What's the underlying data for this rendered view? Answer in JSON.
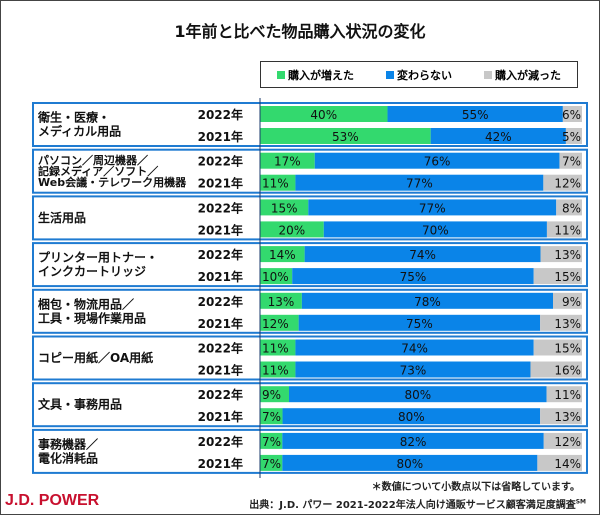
{
  "chart_data": {
    "type": "bar",
    "orientation": "horizontal",
    "stacked": true,
    "title": "1年前と比べた物品購入状況の変化",
    "xlim": [
      0,
      100
    ],
    "legend_placement": "top-right",
    "series_names": [
      "購入が増えた",
      "変わらない",
      "購入が減った"
    ],
    "colors": [
      "#33d96e",
      "#0a84e8",
      "#c8c8c8"
    ],
    "groups": [
      {
        "label": "衛生・医療・\nメディカル用品",
        "rows": [
          {
            "year": "2022年",
            "values": [
              40,
              55,
              6
            ]
          },
          {
            "year": "2021年",
            "values": [
              53,
              42,
              5
            ]
          }
        ]
      },
      {
        "label": "パソコン／周辺機器／\n記録メディア／ソフト／\nWeb会議・テレワーク用機器",
        "rows": [
          {
            "year": "2022年",
            "values": [
              17,
              76,
              7
            ]
          },
          {
            "year": "2021年",
            "values": [
              11,
              77,
              12
            ]
          }
        ]
      },
      {
        "label": "生活用品",
        "rows": [
          {
            "year": "2022年",
            "values": [
              15,
              77,
              8
            ]
          },
          {
            "year": "2021年",
            "values": [
              20,
              70,
              11
            ]
          }
        ]
      },
      {
        "label": "プリンター用トナー・\nインクカートリッジ",
        "rows": [
          {
            "year": "2022年",
            "values": [
              14,
              74,
              13
            ]
          },
          {
            "year": "2021年",
            "values": [
              10,
              75,
              15
            ]
          }
        ]
      },
      {
        "label": "梱包・物流用品／\n工具・現場作業用品",
        "rows": [
          {
            "year": "2022年",
            "values": [
              13,
              78,
              9
            ]
          },
          {
            "year": "2021年",
            "values": [
              12,
              75,
              13
            ]
          }
        ]
      },
      {
        "label": "コピー用紙／OA用紙",
        "rows": [
          {
            "year": "2022年",
            "values": [
              11,
              74,
              15
            ]
          },
          {
            "year": "2021年",
            "values": [
              11,
              73,
              16
            ]
          }
        ]
      },
      {
        "label": "文具・事務用品",
        "rows": [
          {
            "year": "2022年",
            "values": [
              9,
              80,
              11
            ]
          },
          {
            "year": "2021年",
            "values": [
              7,
              80,
              13
            ]
          }
        ]
      },
      {
        "label": "事務機器／\n電化消耗品",
        "rows": [
          {
            "year": "2022年",
            "values": [
              7,
              82,
              12
            ]
          },
          {
            "year": "2021年",
            "values": [
              7,
              80,
              14
            ]
          }
        ]
      }
    ]
  },
  "note": "＊数値について小数点以下は省略しています。",
  "logo": "J.D. POWER",
  "source": "出典：J.D. パワー 2021-2022年法人向け通販サービス顧客満足度調査",
  "source_sup": "SM"
}
